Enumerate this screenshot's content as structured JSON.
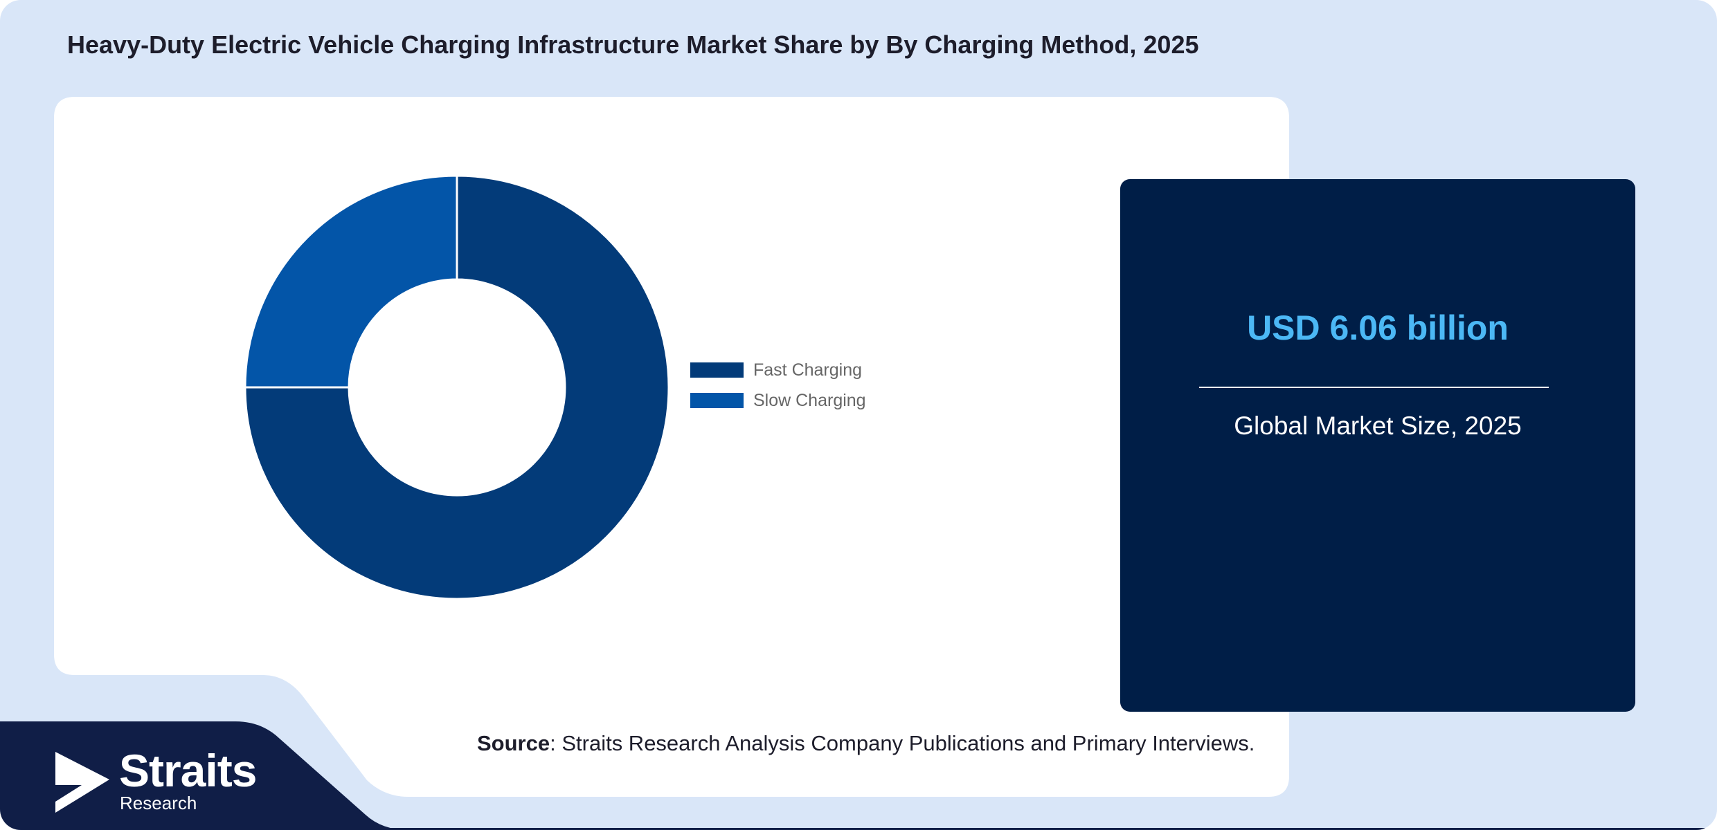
{
  "title": "Heavy-Duty Electric Vehicle Charging Infrastructure Market Share by By Charging Method, 2025",
  "colors": {
    "background": "#d9e6f8",
    "panel": "#ffffff",
    "card": "#001e47",
    "accent_value": "#4cb8f5",
    "brand_band": "#101e47"
  },
  "chart_data": {
    "type": "pie",
    "style": "donut",
    "categories": [
      "Fast Charging",
      "Slow Charging"
    ],
    "values": [
      75,
      25
    ],
    "unit": "%",
    "colors": [
      "#033b79",
      "#0355a8"
    ],
    "legend_position": "right",
    "title": ""
  },
  "info_card": {
    "value": "USD 6.06 billion",
    "label": "Global Market Size, 2025"
  },
  "source": {
    "label": "Source",
    "text": ": Straits Research Analysis Company Publications and Primary Interviews."
  },
  "brand": {
    "name": "Straits",
    "subtitle": "Research",
    "icon": "straits-logo-icon"
  }
}
